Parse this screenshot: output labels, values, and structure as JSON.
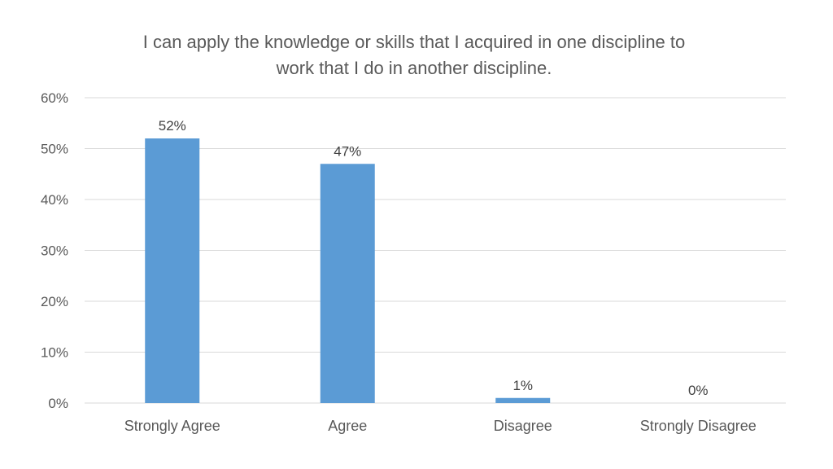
{
  "chart_data": {
    "type": "bar",
    "title_lines": [
      "I can apply the knowledge or skills that I acquired in one discipline to",
      "work that I do in another discipline."
    ],
    "categories": [
      "Strongly Agree",
      "Agree",
      "Disagree",
      "Strongly Disagree"
    ],
    "values": [
      52,
      47,
      1,
      0
    ],
    "value_labels": [
      "52%",
      "47%",
      "1%",
      "0%"
    ],
    "y_ticks": [
      "0%",
      "10%",
      "20%",
      "30%",
      "40%",
      "50%",
      "60%"
    ],
    "ylim": [
      0,
      60
    ],
    "xlabel": "",
    "ylabel": "",
    "grid": true,
    "legend": "none",
    "bar_color": "#5B9BD5",
    "grid_color": "#D9D9D9"
  }
}
